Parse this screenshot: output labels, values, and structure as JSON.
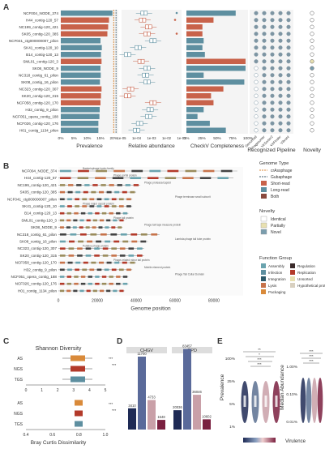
{
  "colors": {
    "short": "#c8624a",
    "long": "#5e8fa0",
    "both": "#8a4a3e",
    "teal": "#6aa3ae",
    "orange": "#d98a3a",
    "dark": "#3b5968",
    "grey": "#888888",
    "red": "#b33a2a",
    "navy": "#1e2a55",
    "wine": "#7a2040"
  },
  "panels": {
    "a": "A",
    "b": "B",
    "c": "C",
    "d": "D",
    "e": "E"
  },
  "chart_data": [
    {
      "id": "A",
      "type": "bar",
      "categories": [
        "NCF004_NODE_374",
        "H44_contig-120_57",
        "NC199_contig-120_421",
        "SK05_contig-120_385",
        "NCF041_ctg000000007_pilon",
        "SK41_contig-120_10",
        "B14_contig-120_13",
        "SML01_contig-120_3",
        "SK08_NODE_9",
        "NC318_contig_61_pilon",
        "SK08_contig_16_pilon",
        "NC323_contig-120_307",
        "SK20_contig-120_315",
        "NCF058_contig-120_170",
        "H32_contig_9_pilon",
        "NCF051_opera_contig_188",
        "NCF026_contig-120_176",
        "H01_contig_1134_pilon"
      ],
      "groups": [
        "long",
        "short",
        "short",
        "short",
        "long",
        "long",
        "long",
        "short",
        "long",
        "long",
        "long",
        "short",
        "short",
        "short",
        "long",
        "long",
        "long",
        "long"
      ],
      "prevalence": [
        19.5,
        18.2,
        17.9,
        17.6,
        15.0,
        15.5,
        15.2,
        15.4,
        15.0,
        15.1,
        14.8,
        15.4,
        15.2,
        15.0,
        14.7,
        14.6,
        14.2,
        14.2
      ],
      "completeness": [
        80,
        44,
        26,
        26,
        28,
        26,
        30,
        96,
        96,
        28,
        94,
        60,
        40,
        44,
        28,
        18,
        38,
        64
      ],
      "rel_abundance_median": [
        -3.5,
        -3.6,
        -3.2,
        -3.3,
        -2.9,
        -3.9,
        -4.6,
        -3.7,
        -3.3,
        -3.4,
        -3.3,
        -4.4,
        -4.6,
        -2.9,
        -3.1,
        -3.2,
        -3.8,
        -4.0
      ],
      "pipelines": [
        "Genomad",
        "Phagesorter",
        "VirSorter2",
        "VirFinder",
        "Vibrant"
      ],
      "novelty": [
        "novel",
        "novel",
        "novel",
        "novel",
        "novel",
        "novel",
        "novel",
        "partial",
        "identical",
        "novel",
        "novel",
        "novel",
        "novel",
        "novel",
        "novel",
        "novel",
        "novel",
        "novel"
      ],
      "xlabels": {
        "prevalence": "Prevalence",
        "abundance": "Relative abundance",
        "completeness": "CheckV Completeness",
        "pipeline": "Recognized Pipeline",
        "novelty": "Novelty"
      },
      "prev_ticks": [
        "0%",
        "5%",
        "10%",
        "15%",
        "20%"
      ],
      "abund_ticks": [
        "1e-05",
        "1e-04",
        "1e-03",
        "1e-02",
        "1e-01"
      ],
      "comp_ticks": [
        "0%",
        "25%",
        "50%",
        "75%",
        "100%"
      ],
      "legend": {
        "title": "Genome Type",
        "items": [
          "crAssphage",
          "Gubaphage",
          "Short-read",
          "Long-read",
          "Both"
        ]
      }
    },
    {
      "id": "B",
      "type": "table",
      "xlabel": "Genome position",
      "xticks": [
        "0",
        "20000",
        "40000",
        "60000",
        "80000"
      ],
      "xlim": [
        0,
        95000
      ],
      "lengths": [
        92000,
        90000,
        42000,
        40000,
        38000,
        38000,
        36000,
        34000,
        33000,
        52000,
        46000,
        44000,
        44000,
        40000,
        38000,
        36000,
        36000,
        34000
      ],
      "novelty_legend": {
        "title": "Novelty",
        "items": [
          "Identical",
          "Partially",
          "Novel"
        ]
      },
      "function_legend": {
        "title": "Function Group",
        "items": [
          "Assembly",
          "Infection",
          "Integration",
          "Lysis",
          "Packaging",
          "Regulation",
          "Replication",
          "Unsorted",
          "Hypothetical protein"
        ]
      },
      "annotations": [
        "Bacteriophage hydro family",
        "Phage portal protein",
        "Phage protease/capsid",
        "Phage terminase small subunit",
        "Phage major capsid protein",
        "Phage tail protein",
        "Phage tail tape measure protein",
        "Lambda phage tail tube protein",
        "Putative phage protein",
        "Phage-related minor tail protein",
        "Mobile element protein",
        "Phage Tail Collar Domain"
      ]
    },
    {
      "id": "C",
      "type": "box",
      "title": "Shannon Diversity",
      "categories": [
        "AS",
        "NGS",
        "TGS"
      ],
      "xticks": [
        "0",
        "1",
        "2",
        "3",
        "4",
        "5"
      ],
      "xlabel2": "Bray Curtis Dissimilarity",
      "xticks2": [
        "0.4",
        "0.6",
        "0.8",
        "1.0"
      ],
      "sig1": [
        "***",
        "***"
      ],
      "sig2": [
        "***",
        "***"
      ]
    },
    {
      "id": "D",
      "type": "bar",
      "groups": [
        "CHGV",
        "GPD"
      ],
      "categories": [
        "short",
        "long",
        "both",
        "other"
      ],
      "values": [
        [
          3410,
          11700,
          4733,
          1548
        ],
        [
          20036,
          83457,
          36046,
          10602
        ]
      ],
      "labels": [
        [
          "3410",
          "11700",
          "4733",
          "1548"
        ],
        [
          "20036",
          "83457",
          "36046",
          "10602"
        ]
      ]
    },
    {
      "id": "E",
      "type": "violin",
      "ylabel1": "Prevalence",
      "ylabel2": "Median Abundance",
      "yticks1": [
        "1%",
        "5%",
        "25%",
        "100%"
      ],
      "yticks2": [
        "0.01%",
        "0.10%",
        "1.00%"
      ],
      "sig1": [
        "**",
        "*",
        "***",
        "***"
      ],
      "sig2": [
        "***",
        "***",
        "***"
      ],
      "legend": "Virulence"
    }
  ]
}
